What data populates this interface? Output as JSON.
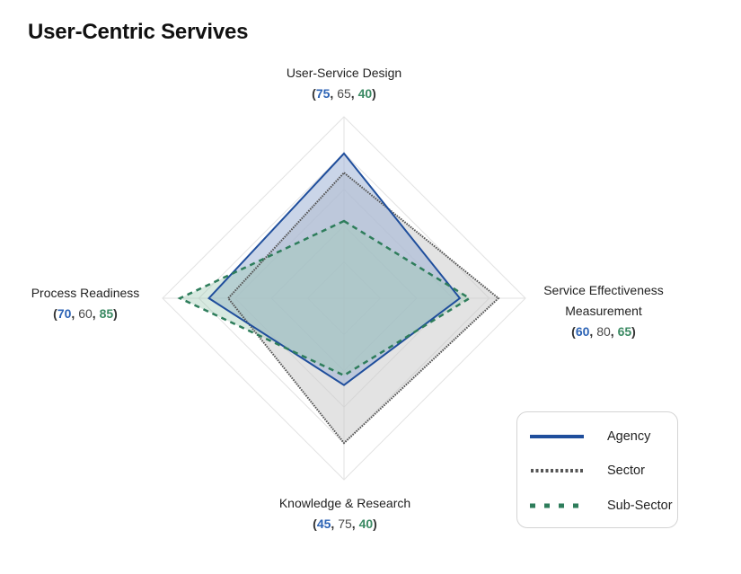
{
  "title": "User-Centric Servives",
  "chart_data": {
    "type": "radar",
    "title": "User-Centric Servives",
    "axes": [
      {
        "name": "User-Service Design",
        "lines": [
          "User-Service Design"
        ]
      },
      {
        "name": "Service Effectiveness Measurement",
        "lines": [
          "Service Effectiveness",
          "Measurement"
        ]
      },
      {
        "name": "Knowledge & Research",
        "lines": [
          "Knowledge & Research"
        ]
      },
      {
        "name": "Process Readiness",
        "lines": [
          "Process Readiness"
        ]
      }
    ],
    "series": [
      {
        "name": "Agency",
        "values": [
          75,
          60,
          45,
          70
        ],
        "color": "#1f4e9c",
        "fill": "#9fb3d6",
        "style": "solid"
      },
      {
        "name": "Sector",
        "values": [
          65,
          80,
          75,
          60
        ],
        "color": "#555555",
        "fill": "#c8c8c8",
        "style": "dotted"
      },
      {
        "name": "Sub-Sector",
        "values": [
          40,
          65,
          40,
          85
        ],
        "color": "#2e7d5b",
        "fill": "#9cc7b2",
        "style": "dashed"
      }
    ],
    "range": [
      0,
      94
    ],
    "grid_rings": 5,
    "legend_position": "bottom-right"
  },
  "labels": {
    "top": {
      "line1": "User-Service Design",
      "a": "75",
      "s": "65",
      "ss": "40"
    },
    "right": {
      "line1": "Service Effectiveness",
      "line2": "Measurement",
      "a": "60",
      "s": "80",
      "ss": "65"
    },
    "bottom": {
      "line1": "Knowledge & Research",
      "a": "45",
      "s": "75",
      "ss": "40"
    },
    "left": {
      "line1": "Process Readiness",
      "a": "70",
      "s": "60",
      "ss": "85"
    }
  },
  "legend": [
    {
      "label": "Agency"
    },
    {
      "label": "Sector"
    },
    {
      "label": "Sub-Sector"
    }
  ],
  "punct": {
    "open": "(",
    "comma": ", ",
    "close": ")"
  }
}
